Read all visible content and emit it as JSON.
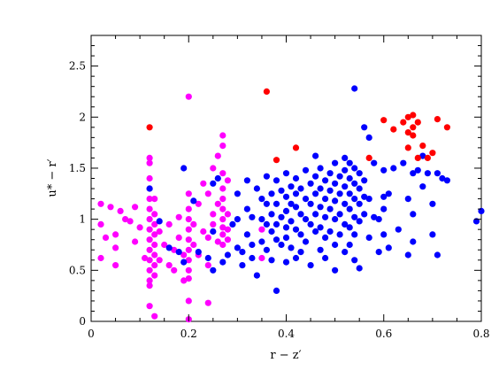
{
  "chart_data": {
    "type": "scatter",
    "title": "",
    "xlabel": "r − z′",
    "ylabel": "u* − r′",
    "xlim": [
      0,
      0.8
    ],
    "ylim": [
      0,
      2.8
    ],
    "grid": false,
    "x_ticks": [
      "0",
      "0.2",
      "0.4",
      "0.6",
      "0.8"
    ],
    "y_ticks": [
      "0",
      "0.5",
      "1",
      "1.5",
      "2",
      "2.5"
    ],
    "series": [
      {
        "color": "#ff00ff",
        "points": [
          [
            0.02,
            1.15
          ],
          [
            0.02,
            0.95
          ],
          [
            0.02,
            0.62
          ],
          [
            0.03,
            0.82
          ],
          [
            0.04,
            1.12
          ],
          [
            0.05,
            0.85
          ],
          [
            0.05,
            0.72
          ],
          [
            0.05,
            0.55
          ],
          [
            0.06,
            1.08
          ],
          [
            0.07,
            1.0
          ],
          [
            0.08,
            0.98
          ],
          [
            0.09,
            0.78
          ],
          [
            0.09,
            1.12
          ],
          [
            0.1,
            0.92
          ],
          [
            0.11,
            0.62
          ],
          [
            0.12,
            1.6
          ],
          [
            0.12,
            1.55
          ],
          [
            0.12,
            1.4
          ],
          [
            0.12,
            1.3
          ],
          [
            0.12,
            1.2
          ],
          [
            0.12,
            1.1
          ],
          [
            0.12,
            1.0
          ],
          [
            0.12,
            0.9
          ],
          [
            0.12,
            0.8
          ],
          [
            0.12,
            0.7
          ],
          [
            0.12,
            0.6
          ],
          [
            0.12,
            0.5
          ],
          [
            0.12,
            0.4
          ],
          [
            0.12,
            0.35
          ],
          [
            0.12,
            0.15
          ],
          [
            0.13,
            1.2
          ],
          [
            0.13,
            1.05
          ],
          [
            0.13,
            0.95
          ],
          [
            0.13,
            0.85
          ],
          [
            0.13,
            0.75
          ],
          [
            0.13,
            0.65
          ],
          [
            0.13,
            0.55
          ],
          [
            0.13,
            0.45
          ],
          [
            0.13,
            0.05
          ],
          [
            0.14,
            0.88
          ],
          [
            0.14,
            0.6
          ],
          [
            0.15,
            0.75
          ],
          [
            0.16,
            0.55
          ],
          [
            0.16,
            0.95
          ],
          [
            0.17,
            0.7
          ],
          [
            0.17,
            0.5
          ],
          [
            0.18,
            1.02
          ],
          [
            0.18,
            0.82
          ],
          [
            0.19,
            0.65
          ],
          [
            0.19,
            0.4
          ],
          [
            0.2,
            2.2
          ],
          [
            0.2,
            1.25
          ],
          [
            0.2,
            1.1
          ],
          [
            0.2,
            1.0
          ],
          [
            0.2,
            0.9
          ],
          [
            0.2,
            0.8
          ],
          [
            0.2,
            0.7
          ],
          [
            0.2,
            0.6
          ],
          [
            0.2,
            0.5
          ],
          [
            0.2,
            0.42
          ],
          [
            0.2,
            0.2
          ],
          [
            0.2,
            0.02
          ],
          [
            0.21,
            0.95
          ],
          [
            0.21,
            0.75
          ],
          [
            0.22,
            1.15
          ],
          [
            0.22,
            0.65
          ],
          [
            0.23,
            0.88
          ],
          [
            0.23,
            1.35
          ],
          [
            0.24,
            1.25
          ],
          [
            0.24,
            0.82
          ],
          [
            0.24,
            0.55
          ],
          [
            0.24,
            0.18
          ],
          [
            0.25,
            1.05
          ],
          [
            0.25,
            0.95
          ],
          [
            0.25,
            1.5
          ],
          [
            0.26,
            1.62
          ],
          [
            0.26,
            1.15
          ],
          [
            0.26,
            0.78
          ],
          [
            0.27,
            1.82
          ],
          [
            0.27,
            1.72
          ],
          [
            0.27,
            1.45
          ],
          [
            0.27,
            1.3
          ],
          [
            0.27,
            1.2
          ],
          [
            0.27,
            1.1
          ],
          [
            0.27,
            1.0
          ],
          [
            0.27,
            0.92
          ],
          [
            0.27,
            0.85
          ],
          [
            0.27,
            0.75
          ],
          [
            0.28,
            1.38
          ],
          [
            0.28,
            1.05
          ],
          [
            0.28,
            0.9
          ],
          [
            0.28,
            0.8
          ],
          [
            0.35,
            0.9
          ],
          [
            0.35,
            0.62
          ]
        ]
      },
      {
        "color": "#0000ff",
        "points": [
          [
            0.12,
            1.3
          ],
          [
            0.14,
            0.98
          ],
          [
            0.16,
            0.72
          ],
          [
            0.18,
            0.68
          ],
          [
            0.19,
            0.58
          ],
          [
            0.21,
            1.18
          ],
          [
            0.22,
            0.68
          ],
          [
            0.24,
            0.62
          ],
          [
            0.25,
            0.88
          ],
          [
            0.25,
            0.5
          ],
          [
            0.19,
            1.5
          ],
          [
            0.25,
            1.35
          ],
          [
            0.26,
            1.4
          ],
          [
            0.29,
            0.95
          ],
          [
            0.3,
            1.25
          ],
          [
            0.3,
            0.72
          ],
          [
            0.31,
            0.68
          ],
          [
            0.31,
            0.55
          ],
          [
            0.32,
            1.38
          ],
          [
            0.32,
            1.1
          ],
          [
            0.32,
            0.85
          ],
          [
            0.33,
            1.02
          ],
          [
            0.33,
            0.62
          ],
          [
            0.34,
            1.3
          ],
          [
            0.34,
            0.45
          ],
          [
            0.35,
            1.2
          ],
          [
            0.35,
            1.0
          ],
          [
            0.35,
            0.78
          ],
          [
            0.36,
            1.42
          ],
          [
            0.36,
            1.15
          ],
          [
            0.36,
            0.95
          ],
          [
            0.36,
            0.7
          ],
          [
            0.37,
            1.25
          ],
          [
            0.37,
            1.05
          ],
          [
            0.37,
            0.88
          ],
          [
            0.37,
            0.6
          ],
          [
            0.38,
            1.38
          ],
          [
            0.38,
            1.15
          ],
          [
            0.38,
            0.95
          ],
          [
            0.38,
            0.8
          ],
          [
            0.38,
            0.3
          ],
          [
            0.39,
            1.28
          ],
          [
            0.39,
            1.02
          ],
          [
            0.39,
            0.75
          ],
          [
            0.4,
            1.45
          ],
          [
            0.4,
            1.22
          ],
          [
            0.4,
            1.08
          ],
          [
            0.4,
            0.92
          ],
          [
            0.4,
            0.82
          ],
          [
            0.4,
            0.58
          ],
          [
            0.41,
            1.32
          ],
          [
            0.41,
            1.15
          ],
          [
            0.41,
            0.98
          ],
          [
            0.41,
            0.72
          ],
          [
            0.42,
            1.4
          ],
          [
            0.42,
            1.25
          ],
          [
            0.42,
            1.12
          ],
          [
            0.42,
            0.9
          ],
          [
            0.42,
            0.62
          ],
          [
            0.43,
            1.3
          ],
          [
            0.43,
            1.05
          ],
          [
            0.43,
            0.85
          ],
          [
            0.43,
            0.68
          ],
          [
            0.44,
            1.48
          ],
          [
            0.44,
            1.2
          ],
          [
            0.44,
            1.0
          ],
          [
            0.44,
            0.78
          ],
          [
            0.45,
            1.35
          ],
          [
            0.45,
            1.15
          ],
          [
            0.45,
            0.95
          ],
          [
            0.45,
            0.55
          ],
          [
            0.46,
            1.42
          ],
          [
            0.46,
            1.25
          ],
          [
            0.46,
            1.05
          ],
          [
            0.46,
            0.88
          ],
          [
            0.47,
            1.5
          ],
          [
            0.47,
            1.3
          ],
          [
            0.47,
            1.12
          ],
          [
            0.47,
            0.92
          ],
          [
            0.47,
            0.7
          ],
          [
            0.48,
            1.38
          ],
          [
            0.48,
            1.2
          ],
          [
            0.48,
            1.02
          ],
          [
            0.48,
            0.82
          ],
          [
            0.48,
            0.62
          ],
          [
            0.49,
            1.45
          ],
          [
            0.49,
            1.28
          ],
          [
            0.49,
            1.1
          ],
          [
            0.49,
            0.88
          ],
          [
            0.5,
            1.55
          ],
          [
            0.5,
            1.35
          ],
          [
            0.5,
            1.18
          ],
          [
            0.5,
            1.0
          ],
          [
            0.5,
            0.75
          ],
          [
            0.5,
            0.5
          ],
          [
            0.51,
            1.42
          ],
          [
            0.51,
            1.25
          ],
          [
            0.51,
            1.05
          ],
          [
            0.51,
            0.85
          ],
          [
            0.52,
            1.6
          ],
          [
            0.52,
            1.48
          ],
          [
            0.52,
            1.32
          ],
          [
            0.52,
            1.15
          ],
          [
            0.52,
            0.95
          ],
          [
            0.52,
            0.68
          ],
          [
            0.53,
            1.55
          ],
          [
            0.53,
            1.4
          ],
          [
            0.53,
            1.25
          ],
          [
            0.53,
            1.1
          ],
          [
            0.53,
            0.92
          ],
          [
            0.53,
            0.75
          ],
          [
            0.54,
            2.28
          ],
          [
            0.54,
            1.5
          ],
          [
            0.54,
            1.35
          ],
          [
            0.54,
            1.2
          ],
          [
            0.54,
            1.02
          ],
          [
            0.54,
            0.85
          ],
          [
            0.54,
            0.6
          ],
          [
            0.55,
            1.45
          ],
          [
            0.55,
            1.3
          ],
          [
            0.55,
            1.15
          ],
          [
            0.55,
            0.98
          ],
          [
            0.55,
            0.52
          ],
          [
            0.56,
            1.38
          ],
          [
            0.56,
            1.22
          ],
          [
            0.56,
            1.05
          ],
          [
            0.57,
            1.2
          ],
          [
            0.57,
            0.82
          ],
          [
            0.58,
            1.55
          ],
          [
            0.58,
            1.02
          ],
          [
            0.59,
            1.0
          ],
          [
            0.59,
            0.68
          ],
          [
            0.6,
            1.48
          ],
          [
            0.6,
            1.1
          ],
          [
            0.6,
            0.85
          ],
          [
            0.61,
            1.25
          ],
          [
            0.61,
            0.72
          ],
          [
            0.62,
            1.5
          ],
          [
            0.63,
            0.9
          ],
          [
            0.64,
            1.55
          ],
          [
            0.65,
            1.2
          ],
          [
            0.65,
            0.65
          ],
          [
            0.66,
            1.45
          ],
          [
            0.66,
            1.05
          ],
          [
            0.66,
            0.78
          ],
          [
            0.67,
            1.48
          ],
          [
            0.68,
            1.32
          ],
          [
            0.68,
            1.62
          ],
          [
            0.69,
            1.45
          ],
          [
            0.7,
            1.15
          ],
          [
            0.7,
            0.85
          ],
          [
            0.71,
            1.45
          ],
          [
            0.71,
            0.65
          ],
          [
            0.72,
            1.4
          ],
          [
            0.73,
            1.38
          ],
          [
            0.56,
            1.9
          ],
          [
            0.57,
            1.8
          ],
          [
            0.46,
            1.62
          ],
          [
            0.79,
            0.98
          ],
          [
            0.8,
            1.08
          ],
          [
            0.6,
            1.22
          ],
          [
            0.33,
            0.75
          ],
          [
            0.3,
            1.0
          ],
          [
            0.28,
            0.65
          ],
          [
            0.27,
            0.58
          ]
        ]
      },
      {
        "color": "#ff0000",
        "points": [
          [
            0.12,
            1.9
          ],
          [
            0.36,
            2.25
          ],
          [
            0.38,
            1.58
          ],
          [
            0.42,
            1.7
          ],
          [
            0.57,
            1.6
          ],
          [
            0.6,
            1.97
          ],
          [
            0.62,
            1.88
          ],
          [
            0.64,
            1.95
          ],
          [
            0.65,
            2.0
          ],
          [
            0.65,
            1.85
          ],
          [
            0.65,
            1.7
          ],
          [
            0.66,
            2.02
          ],
          [
            0.66,
            1.9
          ],
          [
            0.66,
            1.82
          ],
          [
            0.67,
            1.95
          ],
          [
            0.67,
            1.6
          ],
          [
            0.68,
            1.72
          ],
          [
            0.69,
            1.6
          ],
          [
            0.7,
            1.65
          ],
          [
            0.71,
            1.98
          ],
          [
            0.73,
            1.9
          ]
        ]
      }
    ]
  }
}
